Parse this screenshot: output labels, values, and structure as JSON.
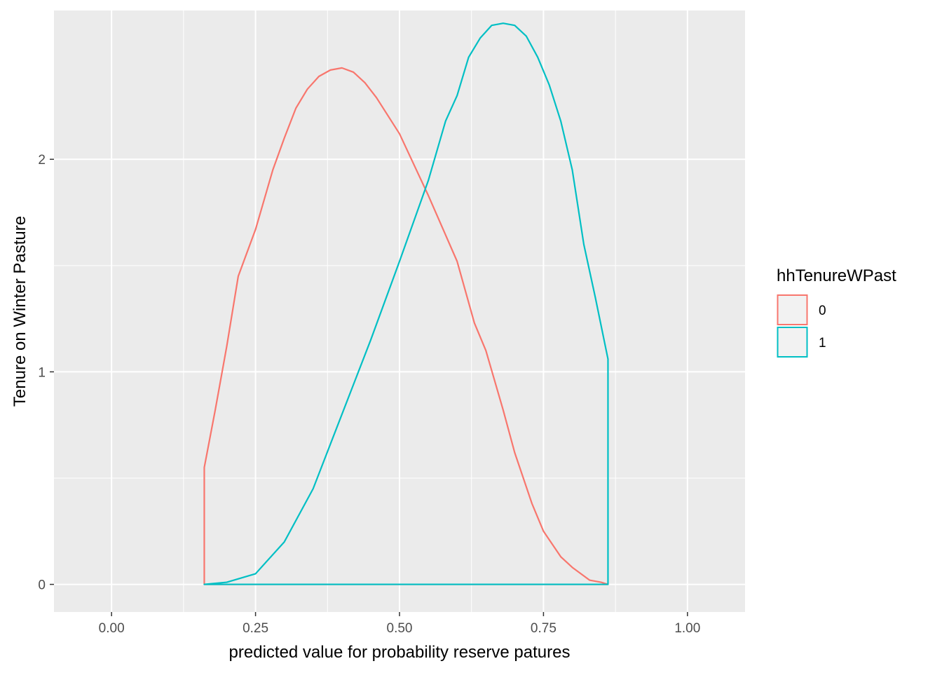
{
  "chart_data": {
    "type": "area",
    "xlabel": "predicted value for probability reserve patures",
    "ylabel": "Tenure on Winter Pasture",
    "xlim": [
      -0.1,
      1.1
    ],
    "ylim": [
      -0.13,
      2.7
    ],
    "x_ticks": [
      {
        "value": 0.0,
        "label": "0.00"
      },
      {
        "value": 0.25,
        "label": "0.25"
      },
      {
        "value": 0.5,
        "label": "0.50"
      },
      {
        "value": 0.75,
        "label": "0.75"
      },
      {
        "value": 1.0,
        "label": "1.00"
      }
    ],
    "y_ticks": [
      {
        "value": 0,
        "label": "0"
      },
      {
        "value": 1,
        "label": "1"
      },
      {
        "value": 2,
        "label": "2"
      }
    ],
    "grid": true,
    "background": "#ebebeb",
    "gridline_color": "#ffffff",
    "legend": {
      "title": "hhTenureWPast",
      "position": "right",
      "items": [
        {
          "label": "0",
          "color": "#f8766d"
        },
        {
          "label": "1",
          "color": "#00bfc4"
        }
      ]
    },
    "series": [
      {
        "group": "0",
        "color": "#f8766d",
        "x": [
          0.161,
          0.18,
          0.2,
          0.22,
          0.25,
          0.28,
          0.3,
          0.32,
          0.34,
          0.36,
          0.38,
          0.4,
          0.42,
          0.44,
          0.46,
          0.5,
          0.55,
          0.6,
          0.63,
          0.65,
          0.68,
          0.7,
          0.73,
          0.75,
          0.78,
          0.8,
          0.83,
          0.85,
          0.862
        ],
        "y": [
          0.55,
          0.82,
          1.12,
          1.45,
          1.67,
          1.95,
          2.1,
          2.24,
          2.33,
          2.39,
          2.42,
          2.43,
          2.41,
          2.36,
          2.29,
          2.12,
          1.83,
          1.52,
          1.23,
          1.1,
          0.82,
          0.62,
          0.38,
          0.25,
          0.13,
          0.08,
          0.02,
          0.01,
          0.0
        ]
      },
      {
        "group": "1",
        "color": "#00bfc4",
        "x": [
          0.161,
          0.2,
          0.25,
          0.3,
          0.35,
          0.4,
          0.45,
          0.5,
          0.55,
          0.58,
          0.6,
          0.62,
          0.64,
          0.66,
          0.68,
          0.7,
          0.72,
          0.74,
          0.76,
          0.78,
          0.8,
          0.82,
          0.84,
          0.862
        ],
        "y": [
          0.0,
          0.01,
          0.05,
          0.2,
          0.45,
          0.8,
          1.15,
          1.52,
          1.9,
          2.18,
          2.3,
          2.48,
          2.57,
          2.63,
          2.64,
          2.63,
          2.58,
          2.48,
          2.35,
          2.18,
          1.95,
          1.6,
          1.35,
          1.06
        ]
      }
    ]
  }
}
